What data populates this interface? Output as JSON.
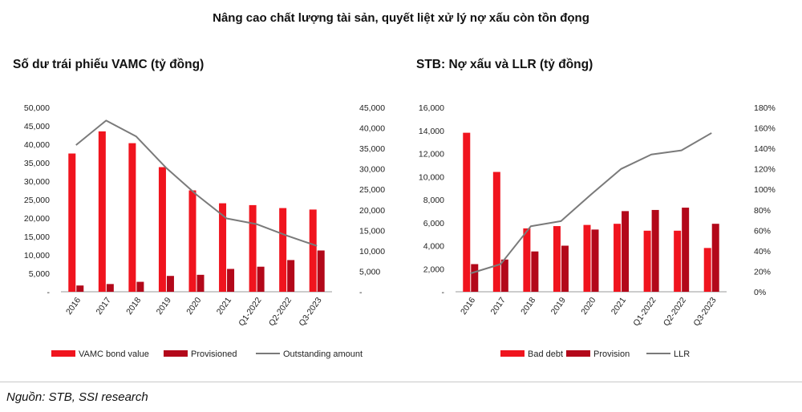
{
  "header": {
    "title": "Nâng cao chất lượng tài sản, quyết liệt xử lý nợ xấu còn tồn đọng"
  },
  "source": "Nguồn: STB, SSI research",
  "colors": {
    "bar_primary": "#f0141e",
    "bar_secondary": "#b3081a",
    "line": "#7a7a7a",
    "axis": "#9a9a9a"
  },
  "chart_data": [
    {
      "id": "left",
      "type": "bar",
      "title": "Số dư trái phiếu VAMC (tỷ đồng)",
      "categories": [
        "2016",
        "2017",
        "2018",
        "2019",
        "2020",
        "2021",
        "Q1-2022",
        "Q2-2022",
        "Q3-2023"
      ],
      "y_left": {
        "min": 0,
        "max": 50000,
        "ticks": [
          "-",
          "5,000",
          "10,000",
          "15,000",
          "20,000",
          "25,000",
          "30,000",
          "35,000",
          "40,000",
          "45,000",
          "50,000"
        ]
      },
      "y_right": {
        "min": 0,
        "max": 45000,
        "ticks": [
          "-",
          "5,000",
          "10,000",
          "15,000",
          "20,000",
          "25,000",
          "30,000",
          "35,000",
          "40,000",
          "45,000"
        ]
      },
      "series": [
        {
          "name": "VAMC bond value",
          "kind": "bar",
          "axis": "left",
          "color": "#f0141e",
          "values": [
            37500,
            43500,
            40300,
            33800,
            27500,
            24000,
            23500,
            22700,
            22300
          ]
        },
        {
          "name": "Provisioned",
          "kind": "bar",
          "axis": "left",
          "color": "#b3081a",
          "values": [
            1700,
            2100,
            2700,
            4300,
            4600,
            6200,
            6800,
            8600,
            11200
          ]
        },
        {
          "name": "Outstanding amount",
          "kind": "line",
          "axis": "right",
          "color": "#7a7a7a",
          "values": [
            35800,
            41800,
            37900,
            30200,
            23700,
            17900,
            16500,
            13700,
            11200
          ]
        }
      ],
      "legend_position": "bottom",
      "grid": false
    },
    {
      "id": "right",
      "type": "bar",
      "title": "STB: Nợ xấu và LLR (tỷ đồng)",
      "categories": [
        "2016",
        "2017",
        "2018",
        "2019",
        "2020",
        "2021",
        "Q1-2022",
        "Q2-2022",
        "Q3-2023"
      ],
      "y_left": {
        "min": 0,
        "max": 16000,
        "ticks": [
          "-",
          "2,000",
          "4,000",
          "6,000",
          "8,000",
          "10,000",
          "12,000",
          "14,000",
          "16,000"
        ]
      },
      "y_right": {
        "min": 0,
        "max": 180,
        "unit": "%",
        "ticks": [
          "0%",
          "20%",
          "40%",
          "60%",
          "80%",
          "100%",
          "120%",
          "140%",
          "160%",
          "180%"
        ]
      },
      "series": [
        {
          "name": "Bad debt",
          "kind": "bar",
          "axis": "left",
          "color": "#f0141e",
          "values": [
            13800,
            10400,
            5500,
            5700,
            5800,
            5900,
            5300,
            5300,
            3800
          ]
        },
        {
          "name": "Provision",
          "kind": "bar",
          "axis": "left",
          "color": "#b3081a",
          "values": [
            2400,
            2800,
            3500,
            4000,
            5400,
            7000,
            7100,
            7300,
            5900
          ]
        },
        {
          "name": "LLR",
          "kind": "line",
          "axis": "right",
          "color": "#7a7a7a",
          "values": [
            18,
            27,
            64,
            69,
            95,
            120,
            134,
            138,
            155
          ]
        }
      ],
      "legend_position": "bottom",
      "grid": false
    }
  ]
}
